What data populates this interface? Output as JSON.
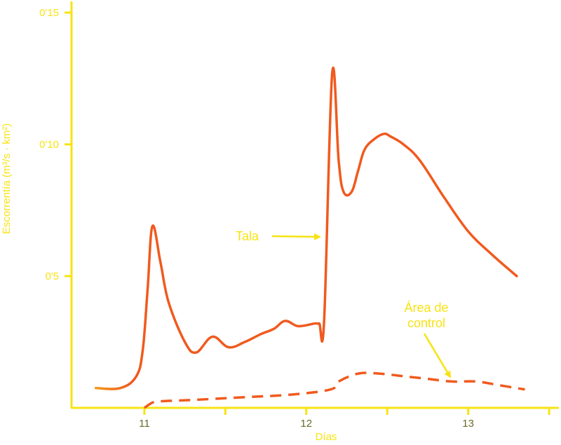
{
  "chart_data": {
    "type": "line",
    "title": "",
    "xlabel": "Días",
    "ylabel": "Escorrentía (m³/s · km²)",
    "xlim": [
      10.55,
      13.4
    ],
    "ylim": [
      0.0,
      0.15
    ],
    "x_ticks": [
      {
        "value": 11,
        "label": "11"
      },
      {
        "value": 11.5,
        "label": ""
      },
      {
        "value": 12,
        "label": "12"
      },
      {
        "value": 12.5,
        "label": ""
      },
      {
        "value": 13,
        "label": "13"
      },
      {
        "value": 13.5,
        "label": ""
      }
    ],
    "y_ticks": [
      {
        "value": 0.05,
        "label": "0'5"
      },
      {
        "value": 0.1,
        "label": "0'10"
      },
      {
        "value": 0.15,
        "label": "0'15"
      }
    ],
    "grid": false,
    "legend": "none",
    "colors": {
      "axis": "#f7e313",
      "tala": "#f05a1e",
      "tala_start": "#f39a1c",
      "control": "#f05a1e",
      "label_tala": "#f7e313",
      "label_control": "#f7e313"
    },
    "series": [
      {
        "style": "solid",
        "x": [
          10.7,
          10.85,
          10.95,
          10.99,
          11.02,
          11.05,
          11.1,
          11.15,
          11.25,
          11.32,
          11.42,
          11.52,
          11.62,
          11.72,
          11.8,
          11.87,
          11.95,
          12.05,
          12.08,
          12.11,
          12.16,
          12.2,
          12.23,
          12.28,
          12.32,
          12.36,
          12.42,
          12.48,
          12.52,
          12.6,
          12.7,
          12.85,
          13.0,
          13.15,
          13.3
        ],
        "y": [
          0.0075,
          0.0075,
          0.012,
          0.022,
          0.045,
          0.069,
          0.055,
          0.04,
          0.025,
          0.021,
          0.027,
          0.023,
          0.025,
          0.028,
          0.03,
          0.033,
          0.031,
          0.032,
          0.032,
          0.033,
          0.127,
          0.094,
          0.082,
          0.082,
          0.09,
          0.098,
          0.102,
          0.104,
          0.103,
          0.1,
          0.094,
          0.08,
          0.067,
          0.058,
          0.05
        ]
      },
      {
        "style": "dashed",
        "x": [
          11.0,
          11.05,
          11.1,
          11.3,
          11.6,
          11.9,
          12.15,
          12.2,
          12.32,
          12.45,
          12.6,
          12.75,
          12.9,
          13.05,
          13.2,
          13.35
        ],
        "y": [
          0.0,
          0.002,
          0.0025,
          0.003,
          0.004,
          0.005,
          0.007,
          0.01,
          0.013,
          0.013,
          0.012,
          0.011,
          0.01,
          0.01,
          0.0085,
          0.007
        ]
      }
    ],
    "annotations": [
      {
        "text": "Tala",
        "points_to": "tala"
      },
      {
        "text_lines": [
          "Área de",
          "control"
        ],
        "points_to": "control"
      }
    ]
  }
}
